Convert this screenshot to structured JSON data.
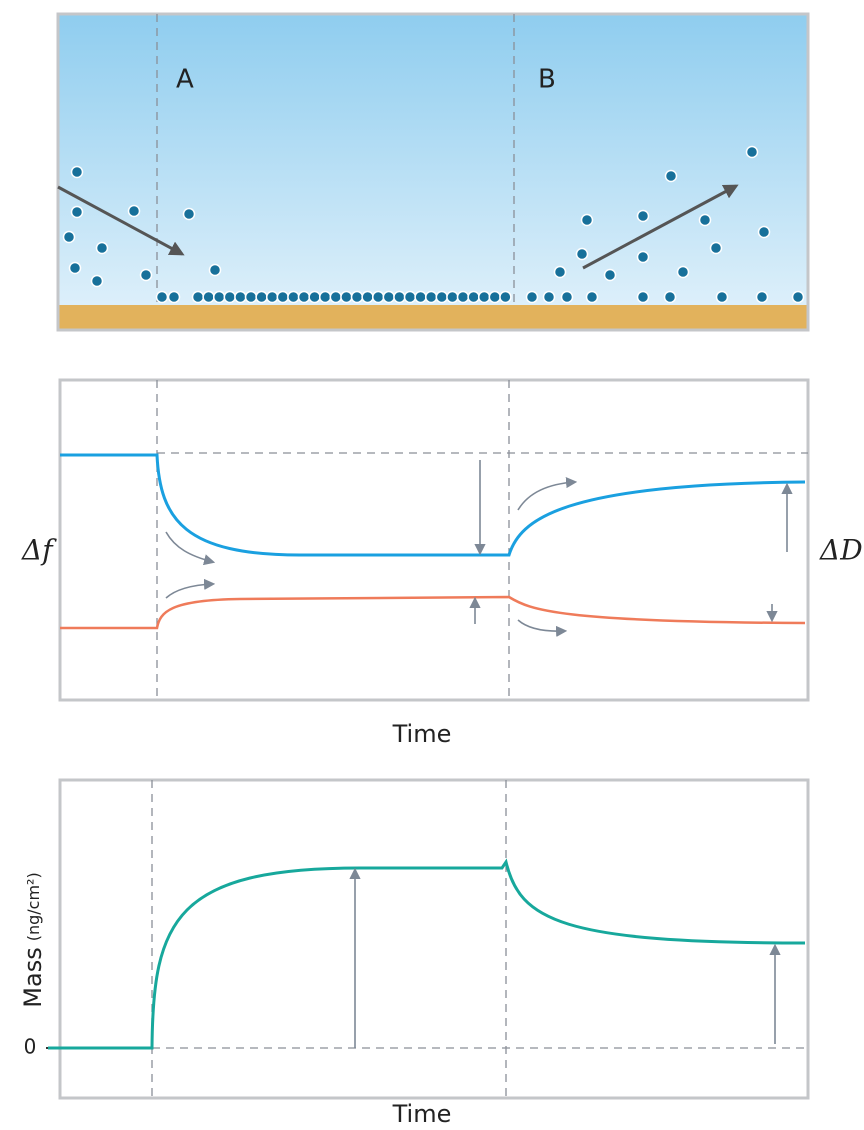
{
  "panel_top": {
    "labels": [
      "A",
      "B"
    ]
  },
  "panel_middle": {
    "left_label": "Δf",
    "right_label": "ΔD",
    "x_label": "Time"
  },
  "panel_bottom": {
    "y_label": "Mass",
    "y_unit": "(ng/cm²)",
    "zero_label": "0",
    "x_label": "Time"
  }
}
